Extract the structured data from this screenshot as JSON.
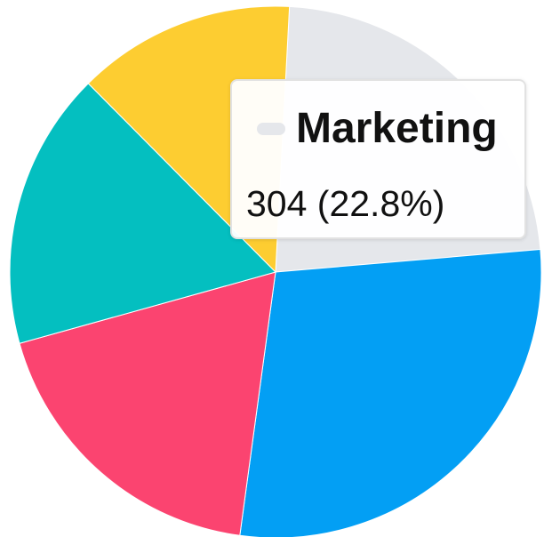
{
  "chart_data": {
    "type": "pie",
    "slices": [
      {
        "value": 304,
        "color": "#e5e7eb"
      },
      {
        "value": 380,
        "color": "#039ff4"
      },
      {
        "value": 247,
        "color": "#fb4470"
      },
      {
        "value": 225,
        "color": "#04bfc0"
      },
      {
        "value": 177,
        "color": "#fdcd31"
      }
    ],
    "start_angle_deg": 3,
    "tooltip": {
      "label": "Marketing",
      "value_text": "304 (22.8%)",
      "swatch_color": "#e5e7eb"
    }
  }
}
